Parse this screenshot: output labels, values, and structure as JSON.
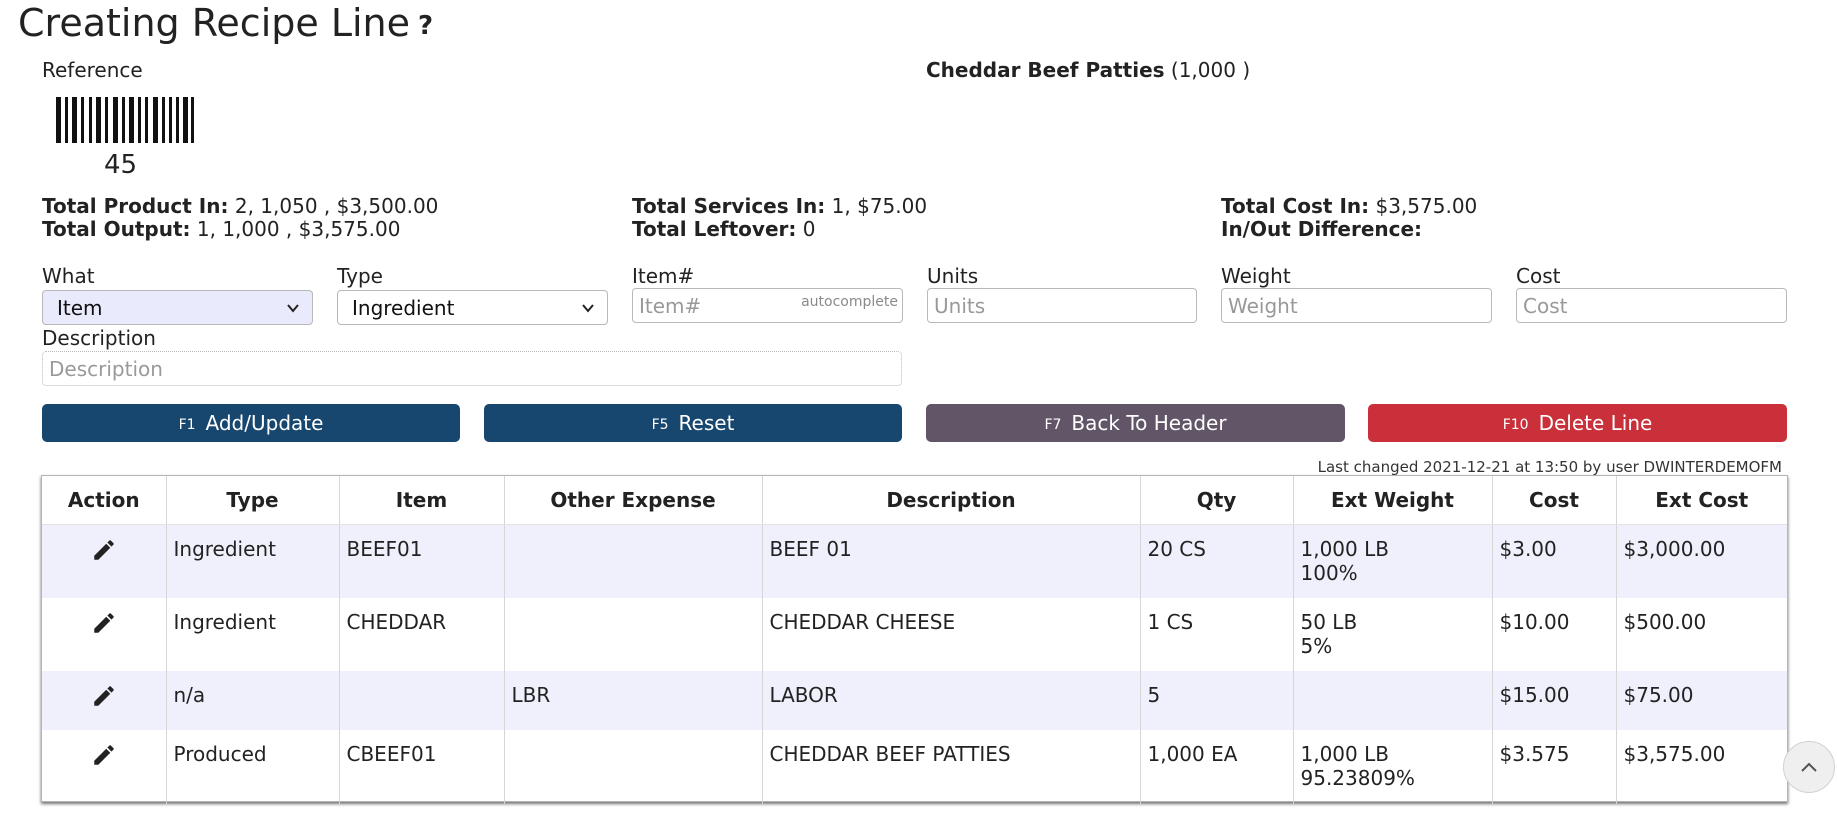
{
  "page": {
    "title": "Creating Recipe Line",
    "help_icon": "?"
  },
  "reference": {
    "label": "Reference",
    "number": "45"
  },
  "product": {
    "name": "Cheddar Beef Patties",
    "qty": "(1,000 )"
  },
  "totals": {
    "product_in_label": "Total Product In:",
    "product_in_value": " 2, 1,050 , $3,500.00",
    "output_label": "Total Output:",
    "output_value": " 1, 1,000 , $3,575.00",
    "services_in_label": "Total Services In:",
    "services_in_value": " 1, $75.00",
    "leftover_label": "Total Leftover:",
    "leftover_value": " 0",
    "cost_in_label": "Total Cost In:",
    "cost_in_value": " $3,575.00",
    "difference_label": "In/Out Difference:"
  },
  "form": {
    "what_label": "What",
    "what_value": "Item",
    "type_label": "Type",
    "type_value": "Ingredient",
    "item_label": "Item#",
    "item_placeholder": "Item#",
    "item_hint": "autocomplete",
    "units_label": "Units",
    "units_placeholder": "Units",
    "weight_label": "Weight",
    "weight_placeholder": "Weight",
    "cost_label": "Cost",
    "cost_placeholder": "Cost",
    "description_label": "Description",
    "description_placeholder": "Description"
  },
  "buttons": {
    "add_key": "F1",
    "add_label": "Add/Update",
    "reset_key": "F5",
    "reset_label": "Reset",
    "back_key": "F7",
    "back_label": "Back To Header",
    "delete_key": "F10",
    "delete_label": "Delete Line",
    "colors": {
      "primary": "#17466e",
      "secondary": "#625567",
      "danger": "#c9303a"
    }
  },
  "last_changed": "Last changed 2021-12-21 at 13:50 by user DWINTERDEMOFM",
  "table": {
    "headers": [
      "Action",
      "Type",
      "Item",
      "Other Expense",
      "Description",
      "Qty",
      "Ext Weight",
      "Cost",
      "Ext Cost"
    ],
    "rows": [
      {
        "type": "Ingredient",
        "item": "BEEF01",
        "other": "",
        "description": "BEEF 01",
        "qty": "20 CS",
        "weight": "1,000 LB",
        "weight_pct": "100%",
        "cost": "$3.00",
        "ext_cost": "$3,000.00"
      },
      {
        "type": "Ingredient",
        "item": "CHEDDAR",
        "other": "",
        "description": "CHEDDAR CHEESE",
        "qty": "1 CS",
        "weight": "50 LB",
        "weight_pct": "5%",
        "cost": "$10.00",
        "ext_cost": "$500.00"
      },
      {
        "type": "n/a",
        "item": "",
        "other": "LBR",
        "description": "LABOR",
        "qty": "5",
        "weight": "",
        "weight_pct": "",
        "cost": "$15.00",
        "ext_cost": "$75.00"
      },
      {
        "type": "Produced",
        "item": "CBEEF01",
        "other": "",
        "description": "CHEDDAR BEEF PATTIES",
        "qty": "1,000 EA",
        "weight": "1,000 LB",
        "weight_pct": "95.23809%",
        "cost": "$3.575",
        "ext_cost": "$3,575.00"
      }
    ]
  },
  "icons": {
    "edit": "pencil-icon",
    "scroll_top": "chevron-up-icon"
  }
}
